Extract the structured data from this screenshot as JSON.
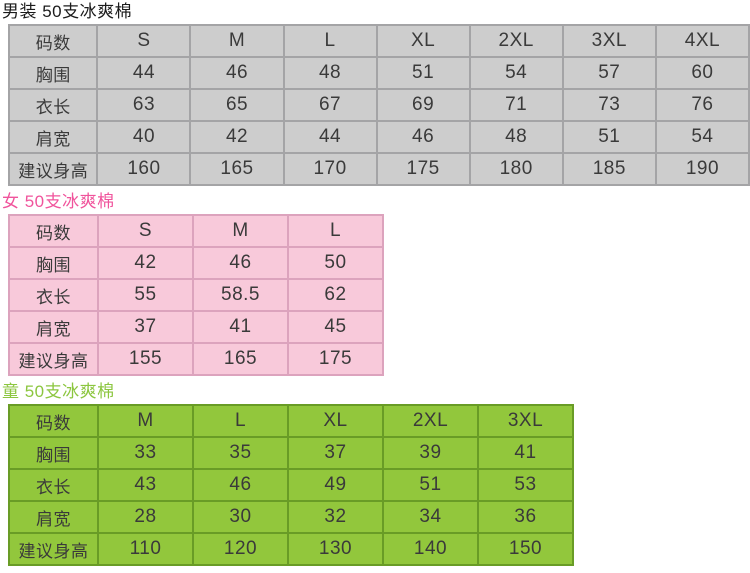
{
  "chart_data": [
    {
      "type": "table",
      "name": "mens-size-table",
      "title": "男装 50支冰爽棉",
      "columns": [
        "码数",
        "S",
        "M",
        "L",
        "XL",
        "2XL",
        "3XL",
        "4XL"
      ],
      "rows": [
        [
          "胸围",
          "44",
          "46",
          "48",
          "51",
          "54",
          "57",
          "60"
        ],
        [
          "衣长",
          "63",
          "65",
          "67",
          "69",
          "71",
          "73",
          "76"
        ],
        [
          "肩宽",
          "40",
          "42",
          "44",
          "46",
          "48",
          "51",
          "54"
        ],
        [
          "建议身高",
          "160",
          "165",
          "170",
          "175",
          "180",
          "185",
          "190"
        ]
      ],
      "style": {
        "title_color": "#1b1b1b",
        "bg": "#cdcdcd",
        "grid": "#a4a4a6"
      }
    },
    {
      "type": "table",
      "name": "womens-size-table",
      "title": "女 50支冰爽棉",
      "columns": [
        "码数",
        "S",
        "M",
        "L"
      ],
      "rows": [
        [
          "胸围",
          "42",
          "46",
          "50"
        ],
        [
          "衣长",
          "55",
          "58.5",
          "62"
        ],
        [
          "肩宽",
          "37",
          "41",
          "45"
        ],
        [
          "建议身高",
          "155",
          "165",
          "175"
        ]
      ],
      "style": {
        "title_color": "#f0549c",
        "bg": "#f8c9da",
        "grid": "#dca3bd"
      }
    },
    {
      "type": "table",
      "name": "kids-size-table",
      "title": "童 50支冰爽棉",
      "columns": [
        "码数",
        "M",
        "L",
        "XL",
        "2XL",
        "3XL"
      ],
      "rows": [
        [
          "胸围",
          "33",
          "35",
          "37",
          "39",
          "41"
        ],
        [
          "衣长",
          "43",
          "46",
          "49",
          "51",
          "53"
        ],
        [
          "肩宽",
          "28",
          "30",
          "32",
          "34",
          "36"
        ],
        [
          "建议身高",
          "110",
          "120",
          "130",
          "140",
          "150"
        ]
      ],
      "style": {
        "title_color": "#8cc63f",
        "bg": "#92c73c",
        "grid": "#699c26"
      }
    }
  ]
}
